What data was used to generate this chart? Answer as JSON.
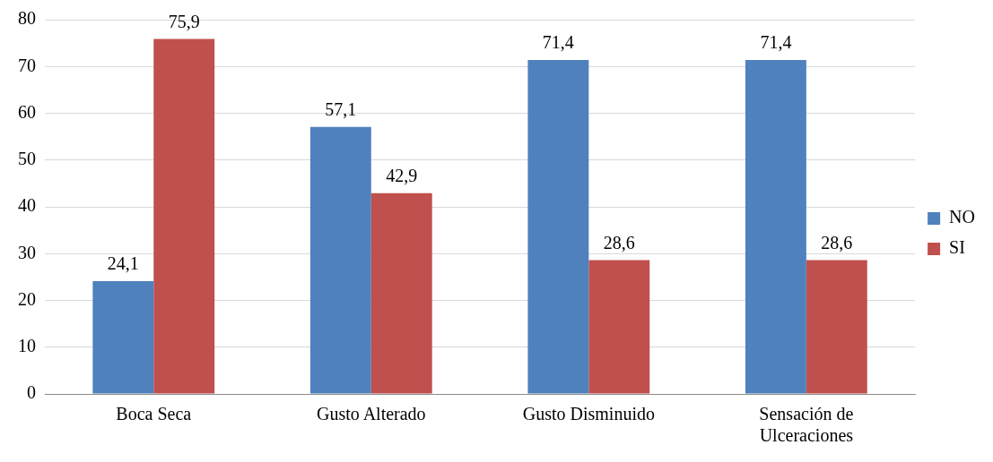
{
  "chart_data": {
    "type": "bar",
    "categories": [
      "Boca Seca",
      "Gusto Alterado",
      "Gusto Disminuido",
      "Sensación de Ulceraciones"
    ],
    "series": [
      {
        "name": "NO",
        "color": "#4f81bd",
        "values": [
          24.1,
          57.1,
          71.4,
          71.4
        ],
        "value_labels": [
          "24,1",
          "57,1",
          "71,4",
          "71,4"
        ]
      },
      {
        "name": "SI",
        "color": "#c0504d",
        "values": [
          75.9,
          42.9,
          28.6,
          28.6
        ],
        "value_labels": [
          "75,9",
          "42,9",
          "28,6",
          "28,6"
        ]
      }
    ],
    "ylim": [
      0,
      80
    ],
    "yticks": [
      0,
      10,
      20,
      30,
      40,
      50,
      60,
      70,
      80
    ],
    "grid": "y",
    "legend": "right"
  }
}
